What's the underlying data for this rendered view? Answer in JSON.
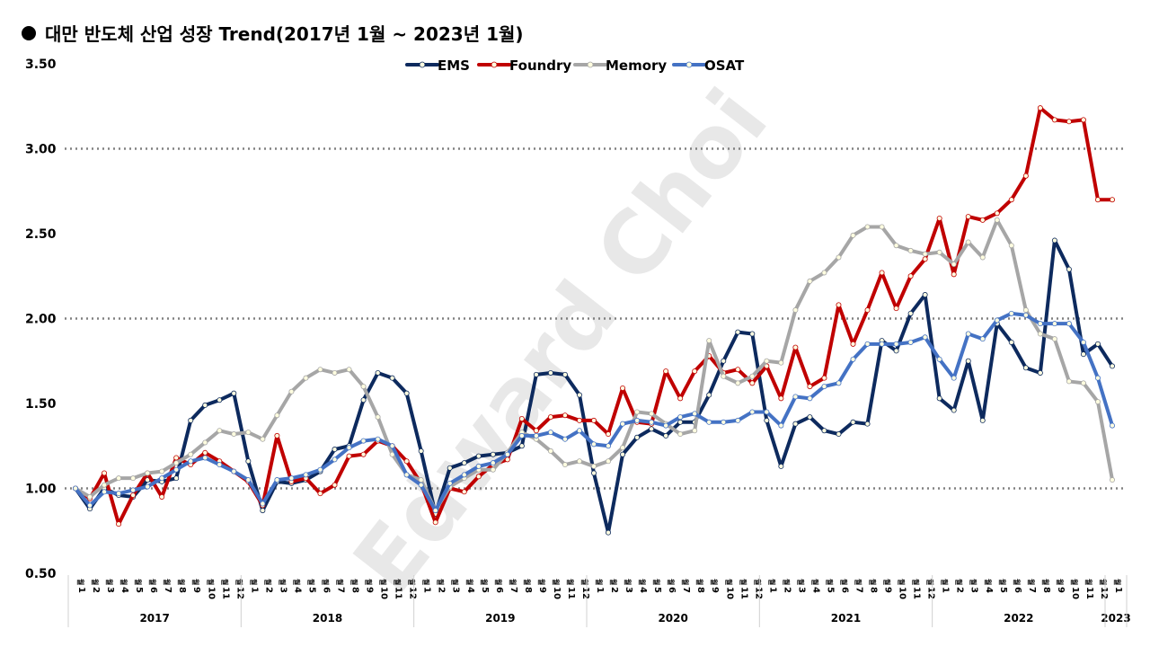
{
  "title": "대만 반도체 산업 성장 Trend(2017년 1월 ~ 2023년 1월)",
  "watermark": "Edward Choi",
  "chart_data": {
    "type": "line",
    "ylim": [
      0.5,
      3.5
    ],
    "yticks": [
      "3.50",
      "3.00",
      "2.50",
      "2.00",
      "1.50",
      "1.00",
      "0.50"
    ],
    "grid": "dotted lines at 1.00, 2.00, 3.00",
    "legend_position": "top-center",
    "month_suffix": "월",
    "years": [
      {
        "label": "2017",
        "months": 12
      },
      {
        "label": "2018",
        "months": 12
      },
      {
        "label": "2019",
        "months": 12
      },
      {
        "label": "2020",
        "months": 12
      },
      {
        "label": "2021",
        "months": 12
      },
      {
        "label": "2022",
        "months": 12
      },
      {
        "label": "2023",
        "months": 1
      }
    ],
    "series": [
      {
        "name": "EMS",
        "color": "#0d2a5e",
        "values": [
          1.0,
          0.88,
          1.0,
          0.96,
          0.95,
          1.05,
          1.04,
          1.06,
          1.4,
          1.49,
          1.52,
          1.56,
          1.16,
          0.87,
          1.04,
          1.03,
          1.05,
          1.1,
          1.23,
          1.25,
          1.52,
          1.68,
          1.65,
          1.56,
          1.22,
          0.85,
          1.12,
          1.15,
          1.19,
          1.2,
          1.21,
          1.25,
          1.67,
          1.68,
          1.67,
          1.55,
          1.09,
          0.74,
          1.2,
          1.3,
          1.35,
          1.31,
          1.39,
          1.39,
          1.55,
          1.75,
          1.92,
          1.91,
          1.4,
          1.13,
          1.38,
          1.42,
          1.34,
          1.32,
          1.39,
          1.38,
          1.87,
          1.81,
          2.03,
          2.14,
          1.53,
          1.46,
          1.75,
          1.4,
          1.97,
          1.86,
          1.71,
          1.68,
          2.46,
          2.29,
          1.79,
          1.85,
          1.72
        ]
      },
      {
        "name": "Foundry",
        "color": "#c00000",
        "values": [
          1.0,
          0.94,
          1.09,
          0.79,
          0.96,
          1.09,
          0.95,
          1.18,
          1.14,
          1.21,
          1.16,
          1.1,
          1.04,
          0.9,
          1.31,
          1.04,
          1.06,
          0.97,
          1.02,
          1.19,
          1.2,
          1.28,
          1.25,
          1.16,
          1.03,
          0.8,
          1.0,
          0.98,
          1.07,
          1.14,
          1.17,
          1.41,
          1.34,
          1.42,
          1.43,
          1.4,
          1.4,
          1.32,
          1.59,
          1.39,
          1.38,
          1.69,
          1.53,
          1.69,
          1.78,
          1.68,
          1.7,
          1.62,
          1.72,
          1.53,
          1.83,
          1.6,
          1.65,
          2.08,
          1.85,
          2.05,
          2.27,
          2.06,
          2.25,
          2.35,
          2.59,
          2.26,
          2.6,
          2.58,
          2.62,
          2.7,
          2.84,
          3.24,
          3.17,
          3.16,
          3.17,
          2.7,
          2.7
        ]
      },
      {
        "name": "Memory",
        "color": "#a6a6a6",
        "values": [
          1.0,
          0.95,
          1.02,
          1.06,
          1.06,
          1.09,
          1.1,
          1.15,
          1.2,
          1.27,
          1.34,
          1.32,
          1.33,
          1.29,
          1.43,
          1.57,
          1.65,
          1.7,
          1.68,
          1.7,
          1.6,
          1.42,
          1.2,
          1.08,
          1.05,
          0.87,
          1.01,
          1.06,
          1.11,
          1.11,
          1.21,
          1.33,
          1.29,
          1.22,
          1.14,
          1.16,
          1.13,
          1.16,
          1.24,
          1.45,
          1.44,
          1.38,
          1.32,
          1.34,
          1.87,
          1.66,
          1.62,
          1.66,
          1.75,
          1.74,
          2.05,
          2.22,
          2.27,
          2.36,
          2.49,
          2.54,
          2.54,
          2.43,
          2.4,
          2.38,
          2.39,
          2.32,
          2.45,
          2.36,
          2.58,
          2.43,
          2.05,
          1.91,
          1.88,
          1.63,
          1.62,
          1.51,
          1.05
        ]
      },
      {
        "name": "OSAT",
        "color": "#4472c4",
        "values": [
          1.0,
          0.9,
          0.98,
          0.97,
          0.99,
          1.01,
          1.06,
          1.11,
          1.16,
          1.18,
          1.14,
          1.1,
          1.05,
          0.91,
          1.05,
          1.06,
          1.08,
          1.11,
          1.17,
          1.24,
          1.28,
          1.29,
          1.25,
          1.08,
          1.02,
          0.87,
          1.03,
          1.08,
          1.13,
          1.15,
          1.2,
          1.31,
          1.31,
          1.33,
          1.29,
          1.34,
          1.26,
          1.25,
          1.38,
          1.4,
          1.39,
          1.37,
          1.42,
          1.44,
          1.39,
          1.39,
          1.4,
          1.45,
          1.45,
          1.37,
          1.54,
          1.53,
          1.6,
          1.62,
          1.76,
          1.85,
          1.85,
          1.85,
          1.86,
          1.89,
          1.76,
          1.65,
          1.91,
          1.88,
          1.99,
          2.03,
          2.02,
          1.97,
          1.97,
          1.97,
          1.86,
          1.65,
          1.37
        ]
      }
    ]
  }
}
